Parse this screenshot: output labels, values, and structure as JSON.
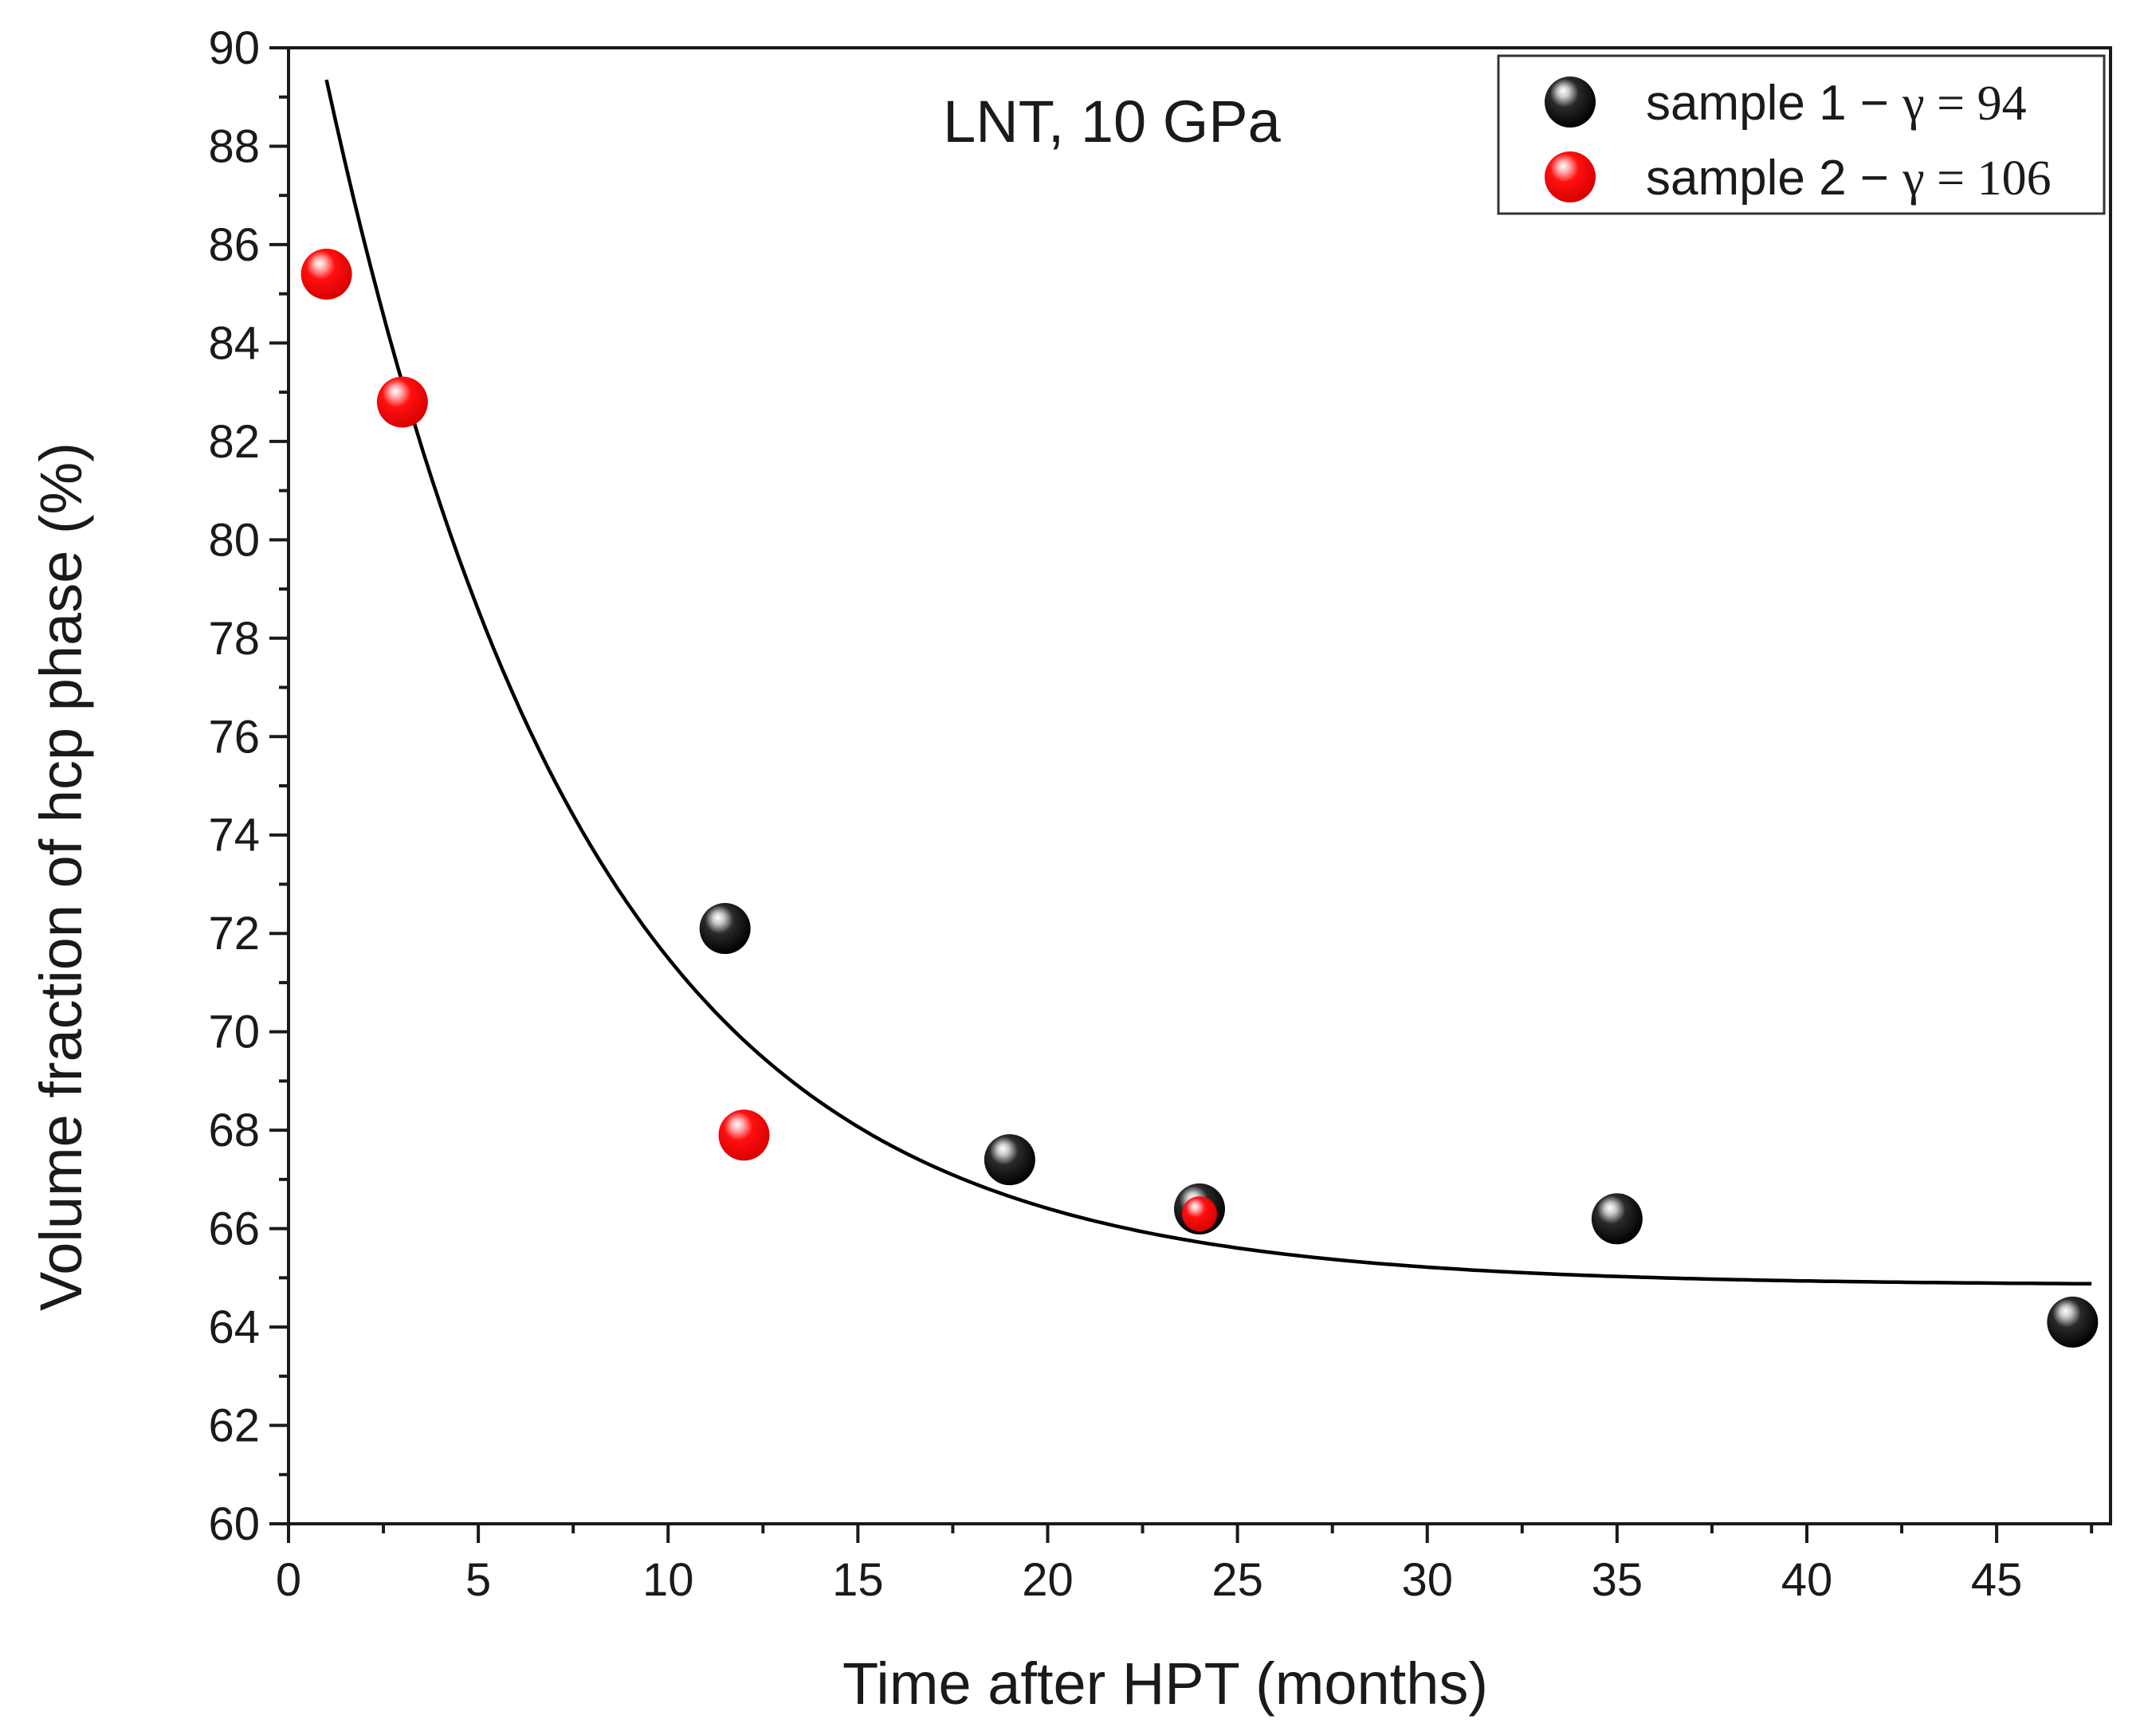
{
  "chart_data": {
    "type": "scatter",
    "annotation": "LNT, 10 GPa",
    "xlabel": "Time after HPT (months)",
    "ylabel": "Volume fraction of hcp phase (%)",
    "xlim": [
      0,
      48
    ],
    "ylim": [
      60,
      90
    ],
    "x_ticks": [
      0,
      5,
      10,
      15,
      20,
      25,
      30,
      35,
      40,
      45
    ],
    "y_ticks": [
      60,
      62,
      64,
      66,
      68,
      70,
      72,
      74,
      76,
      78,
      80,
      82,
      84,
      86,
      88,
      90
    ],
    "legend_position": "top-right",
    "series": [
      {
        "name": "sample 1",
        "legend_label": "sample 1 − ",
        "legend_math": "γ = 94",
        "color": "#000000",
        "points": [
          {
            "x": 11.5,
            "y": 72.1
          },
          {
            "x": 19,
            "y": 67.4
          },
          {
            "x": 24,
            "y": 66.4
          },
          {
            "x": 35,
            "y": 66.2
          },
          {
            "x": 47,
            "y": 64.1
          }
        ]
      },
      {
        "name": "sample 2",
        "legend_label": "sample 2 − ",
        "legend_math": "γ = 106",
        "color": "#ff0000",
        "points": [
          {
            "x": 1,
            "y": 85.4
          },
          {
            "x": 3,
            "y": 82.8
          },
          {
            "x": 12,
            "y": 67.9
          },
          {
            "x": 24,
            "y": 66.3
          }
        ]
      }
    ],
    "fit_curve": {
      "type": "exponential_decay",
      "y0": 64.85,
      "A": 24.5,
      "tau": 6.9,
      "x_start": 1,
      "x_end": 47.5,
      "color": "#000000"
    }
  }
}
